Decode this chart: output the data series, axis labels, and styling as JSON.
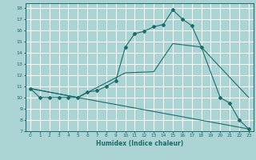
{
  "xlabel": "Humidex (Indice chaleur)",
  "bg_color": "#add4d4",
  "grid_color": "#ffffff",
  "line_color": "#1a6b6b",
  "xlim": [
    -0.5,
    23.5
  ],
  "ylim": [
    7,
    18.4
  ],
  "xticks": [
    0,
    1,
    2,
    3,
    4,
    5,
    6,
    7,
    8,
    9,
    10,
    11,
    12,
    13,
    14,
    15,
    16,
    17,
    18,
    19,
    20,
    21,
    22,
    23
  ],
  "yticks": [
    7,
    8,
    9,
    10,
    11,
    12,
    13,
    14,
    15,
    16,
    17,
    18
  ],
  "line1_x": [
    0,
    1,
    2,
    3,
    4,
    5,
    6,
    7,
    8,
    9,
    10,
    11,
    12,
    13,
    14,
    15,
    16,
    17,
    18,
    20,
    21,
    22,
    23
  ],
  "line1_y": [
    10.8,
    10.0,
    10.0,
    10.0,
    10.0,
    10.0,
    10.5,
    10.6,
    11.0,
    11.5,
    14.5,
    15.7,
    15.9,
    16.3,
    16.5,
    17.8,
    17.0,
    16.4,
    14.5,
    10.0,
    9.5,
    8.0,
    7.2
  ],
  "line2_x": [
    0,
    5,
    10,
    13,
    15,
    18,
    23
  ],
  "line2_y": [
    10.8,
    10.0,
    12.2,
    12.3,
    14.8,
    14.5,
    10.0
  ],
  "line3_x": [
    0,
    5,
    23
  ],
  "line3_y": [
    10.8,
    10.0,
    7.2
  ]
}
